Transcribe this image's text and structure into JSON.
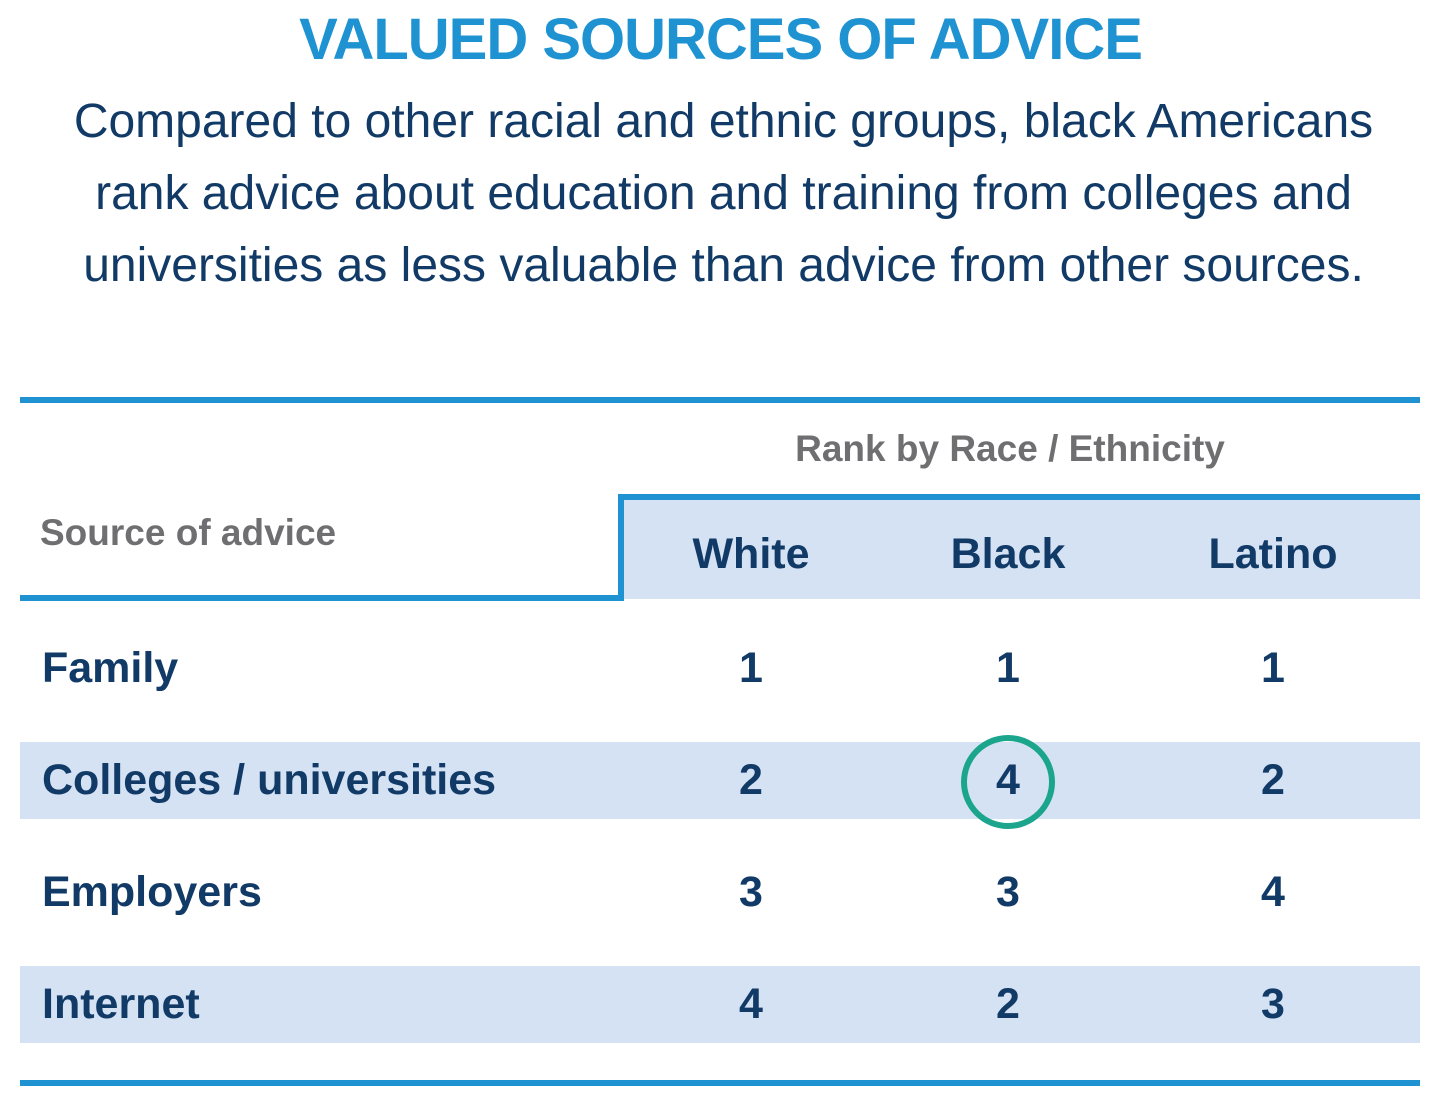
{
  "title": "VALUED SOURCES OF ADVICE",
  "subtitle_lines": [
    "Compared to other racial and ethnic groups, black Americans",
    "rank advice about education and training from colleges and",
    "universities as less valuable than advice from other sources."
  ],
  "colors": {
    "title": "#1f93d2",
    "text": "#123a67",
    "header_gray": "#6f6f72",
    "row_band": "#d4e2f4",
    "rule": "#1f93d2",
    "highlight": "#1ba58c"
  },
  "chart_data": {
    "type": "table",
    "title": "VALUED SOURCES OF ADVICE",
    "group_header": "Rank by Race / Ethnicity",
    "row_header": "Source of advice",
    "columns": [
      "White",
      "Black",
      "Latino"
    ],
    "rows": [
      {
        "label": "Family",
        "values": [
          1,
          1,
          1
        ],
        "shaded": false
      },
      {
        "label": "Colleges / universities",
        "values": [
          2,
          4,
          2
        ],
        "shaded": true
      },
      {
        "label": "Employers",
        "values": [
          3,
          3,
          4
        ],
        "shaded": false
      },
      {
        "label": "Internet",
        "values": [
          4,
          2,
          3
        ],
        "shaded": true
      }
    ],
    "highlighted_cell": {
      "row": 1,
      "column": 1
    }
  }
}
